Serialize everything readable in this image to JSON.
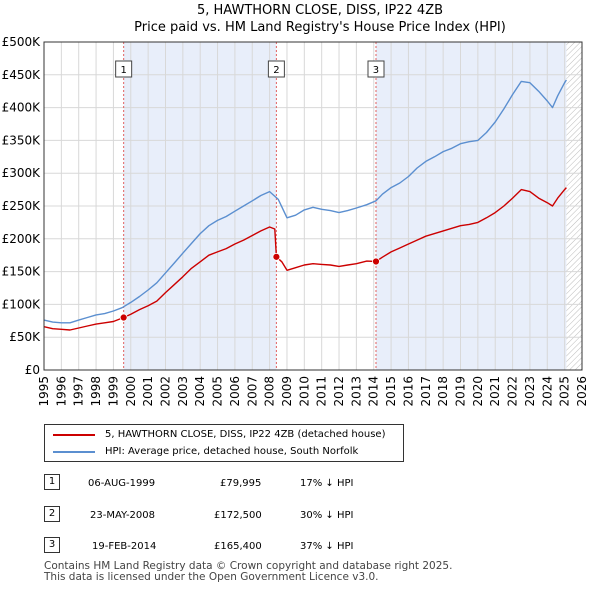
{
  "chart_data": {
    "type": "line",
    "title": "5, HAWTHORN CLOSE, DISS, IP22 4ZB",
    "subtitle": "Price paid vs. HM Land Registry's House Price Index (HPI)",
    "xlim": [
      1995,
      2026
    ],
    "ylim": [
      0,
      500000
    ],
    "x_ticks": [
      1995,
      1996,
      1997,
      1998,
      1999,
      2000,
      2001,
      2002,
      2003,
      2004,
      2005,
      2006,
      2007,
      2008,
      2009,
      2010,
      2011,
      2012,
      2013,
      2014,
      2015,
      2016,
      2017,
      2018,
      2019,
      2020,
      2021,
      2022,
      2023,
      2024,
      2025,
      2026
    ],
    "y_ticks": [
      {
        "value": 0,
        "label": "£0"
      },
      {
        "value": 50000,
        "label": "£50K"
      },
      {
        "value": 100000,
        "label": "£100K"
      },
      {
        "value": 150000,
        "label": "£150K"
      },
      {
        "value": 200000,
        "label": "£200K"
      },
      {
        "value": 250000,
        "label": "£250K"
      },
      {
        "value": 300000,
        "label": "£300K"
      },
      {
        "value": 350000,
        "label": "£350K"
      },
      {
        "value": 400000,
        "label": "£400K"
      },
      {
        "value": 450000,
        "label": "£450K"
      },
      {
        "value": 500000,
        "label": "£500K"
      }
    ],
    "shaded_regions": [
      {
        "from": 1999.59,
        "to": 2008.39
      },
      {
        "from": 2014.13,
        "to": 2025.1
      }
    ],
    "hatch_from": 2025.1,
    "series": [
      {
        "name": "5, HAWTHORN CLOSE, DISS, IP22 4ZB (detached house)",
        "color": "#cc0000",
        "points": [
          [
            1995.0,
            66000
          ],
          [
            1995.5,
            63000
          ],
          [
            1996.0,
            62000
          ],
          [
            1996.5,
            61000
          ],
          [
            1997.0,
            64000
          ],
          [
            1997.5,
            67000
          ],
          [
            1998.0,
            70000
          ],
          [
            1998.5,
            72000
          ],
          [
            1999.0,
            74000
          ],
          [
            1999.59,
            79995
          ],
          [
            2000.0,
            85000
          ],
          [
            2000.5,
            92000
          ],
          [
            2001.0,
            98000
          ],
          [
            2001.5,
            105000
          ],
          [
            2002.0,
            118000
          ],
          [
            2002.5,
            130000
          ],
          [
            2003.0,
            142000
          ],
          [
            2003.5,
            155000
          ],
          [
            2004.0,
            165000
          ],
          [
            2004.5,
            175000
          ],
          [
            2005.0,
            180000
          ],
          [
            2005.5,
            185000
          ],
          [
            2006.0,
            192000
          ],
          [
            2006.5,
            198000
          ],
          [
            2007.0,
            205000
          ],
          [
            2007.5,
            212000
          ],
          [
            2008.0,
            218000
          ],
          [
            2008.3,
            215000
          ],
          [
            2008.39,
            172500
          ],
          [
            2008.7,
            165000
          ],
          [
            2009.0,
            152000
          ],
          [
            2009.5,
            156000
          ],
          [
            2010.0,
            160000
          ],
          [
            2010.5,
            162000
          ],
          [
            2011.0,
            161000
          ],
          [
            2011.5,
            160000
          ],
          [
            2012.0,
            158000
          ],
          [
            2012.5,
            160000
          ],
          [
            2013.0,
            162000
          ],
          [
            2013.6,
            166000
          ],
          [
            2014.13,
            165400
          ],
          [
            2014.5,
            172000
          ],
          [
            2015.0,
            180000
          ],
          [
            2015.5,
            186000
          ],
          [
            2016.0,
            192000
          ],
          [
            2016.5,
            198000
          ],
          [
            2017.0,
            204000
          ],
          [
            2017.5,
            208000
          ],
          [
            2018.0,
            212000
          ],
          [
            2018.5,
            216000
          ],
          [
            2019.0,
            220000
          ],
          [
            2019.5,
            222000
          ],
          [
            2020.0,
            225000
          ],
          [
            2020.5,
            232000
          ],
          [
            2021.0,
            240000
          ],
          [
            2021.5,
            250000
          ],
          [
            2022.0,
            262000
          ],
          [
            2022.5,
            275000
          ],
          [
            2023.0,
            272000
          ],
          [
            2023.5,
            262000
          ],
          [
            2024.0,
            255000
          ],
          [
            2024.3,
            250000
          ],
          [
            2024.6,
            262000
          ],
          [
            2025.0,
            275000
          ],
          [
            2025.1,
            278000
          ]
        ]
      },
      {
        "name": "HPI: Average price, detached house, South Norfolk",
        "color": "#5b8fd0",
        "points": [
          [
            1995.0,
            76000
          ],
          [
            1995.5,
            73000
          ],
          [
            1996.0,
            72000
          ],
          [
            1996.5,
            72000
          ],
          [
            1997.0,
            76000
          ],
          [
            1997.5,
            80000
          ],
          [
            1998.0,
            84000
          ],
          [
            1998.5,
            86000
          ],
          [
            1999.0,
            90000
          ],
          [
            1999.5,
            95000
          ],
          [
            2000.0,
            103000
          ],
          [
            2000.5,
            112000
          ],
          [
            2001.0,
            122000
          ],
          [
            2001.5,
            133000
          ],
          [
            2002.0,
            148000
          ],
          [
            2002.5,
            163000
          ],
          [
            2003.0,
            178000
          ],
          [
            2003.5,
            193000
          ],
          [
            2004.0,
            208000
          ],
          [
            2004.5,
            220000
          ],
          [
            2005.0,
            228000
          ],
          [
            2005.5,
            234000
          ],
          [
            2006.0,
            242000
          ],
          [
            2006.5,
            250000
          ],
          [
            2007.0,
            258000
          ],
          [
            2007.5,
            266000
          ],
          [
            2008.0,
            272000
          ],
          [
            2008.5,
            260000
          ],
          [
            2009.0,
            232000
          ],
          [
            2009.5,
            236000
          ],
          [
            2010.0,
            244000
          ],
          [
            2010.5,
            248000
          ],
          [
            2011.0,
            245000
          ],
          [
            2011.5,
            243000
          ],
          [
            2012.0,
            240000
          ],
          [
            2012.5,
            243000
          ],
          [
            2013.0,
            247000
          ],
          [
            2013.6,
            252000
          ],
          [
            2014.13,
            258000
          ],
          [
            2014.5,
            268000
          ],
          [
            2015.0,
            278000
          ],
          [
            2015.5,
            285000
          ],
          [
            2016.0,
            295000
          ],
          [
            2016.5,
            308000
          ],
          [
            2017.0,
            318000
          ],
          [
            2017.5,
            325000
          ],
          [
            2018.0,
            333000
          ],
          [
            2018.5,
            338000
          ],
          [
            2019.0,
            345000
          ],
          [
            2019.5,
            348000
          ],
          [
            2020.0,
            350000
          ],
          [
            2020.5,
            362000
          ],
          [
            2021.0,
            378000
          ],
          [
            2021.5,
            398000
          ],
          [
            2022.0,
            420000
          ],
          [
            2022.5,
            440000
          ],
          [
            2023.0,
            438000
          ],
          [
            2023.5,
            425000
          ],
          [
            2024.0,
            410000
          ],
          [
            2024.3,
            400000
          ],
          [
            2024.6,
            418000
          ],
          [
            2025.0,
            438000
          ],
          [
            2025.1,
            442000
          ]
        ]
      }
    ],
    "sales": [
      {
        "num": "1",
        "x": 1999.59,
        "price": 79995
      },
      {
        "num": "2",
        "x": 2008.39,
        "price": 172500
      },
      {
        "num": "3",
        "x": 2014.13,
        "price": 165400
      }
    ]
  },
  "colors": {
    "price_line": "#cc0000",
    "hpi_line": "#5b8fd0",
    "shade": "#e8eefa",
    "grid": "#d8d8d8",
    "vline": "#e06060"
  },
  "legend": {
    "property": "5, HAWTHORN CLOSE, DISS, IP22 4ZB (detached house)",
    "hpi": "HPI: Average price, detached house, South Norfolk"
  },
  "sales_table": [
    {
      "num": "1",
      "date": "06-AUG-1999",
      "price": "£79,995",
      "pct": "17% ↓ HPI"
    },
    {
      "num": "2",
      "date": "23-MAY-2008",
      "price": "£172,500",
      "pct": "30% ↓ HPI"
    },
    {
      "num": "3",
      "date": "19-FEB-2014",
      "price": "£165,400",
      "pct": "37% ↓ HPI"
    }
  ],
  "footer": {
    "line1": "Contains HM Land Registry data © Crown copyright and database right 2025.",
    "line2": "This data is licensed under the Open Government Licence v3.0."
  }
}
